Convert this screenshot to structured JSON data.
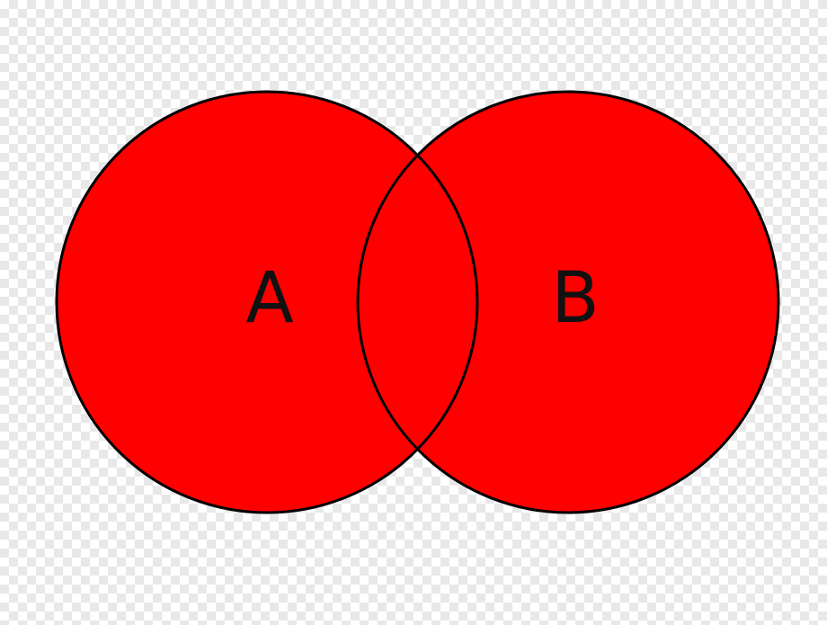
{
  "diagram": {
    "type": "venn",
    "fill_color": "#ff0000",
    "stroke_color": "#000000",
    "background": "checkerboard-transparency",
    "sets": [
      {
        "label": "A"
      },
      {
        "label": "B"
      }
    ]
  }
}
